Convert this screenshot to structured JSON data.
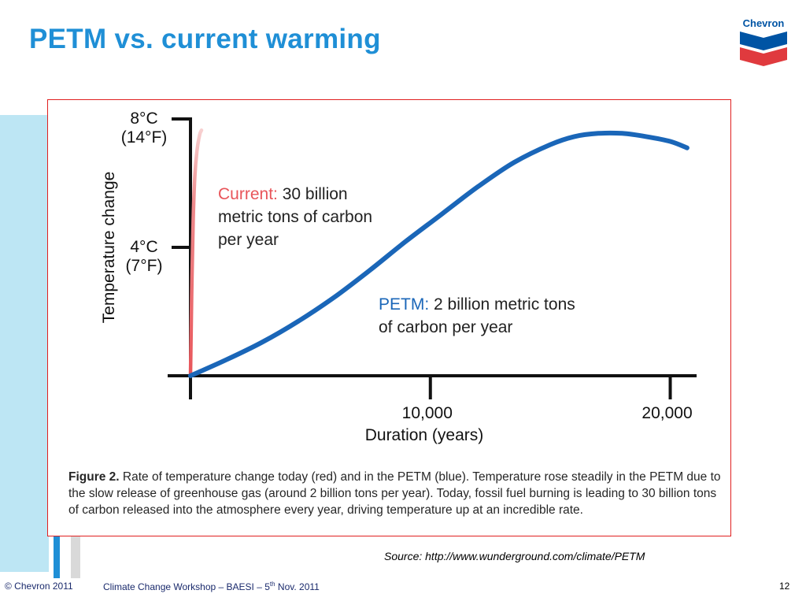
{
  "slide": {
    "title": "PETM vs. current warming",
    "source": "Source: http://www.wunderground.com/climate/PETM"
  },
  "logo": {
    "text": "Chevron",
    "icon": "chevron-logo-icon",
    "colors": {
      "blue": "#0054a4",
      "red": "#e03a3e"
    }
  },
  "footer": {
    "copyright": "© Chevron 2011",
    "event_prefix": "Climate Change Workshop – BAESI – 5",
    "event_sup": "th",
    "event_suffix": " Nov. 2011",
    "page": "12"
  },
  "caption": {
    "label": "Figure 2.",
    "text": " Rate of temperature change today (red) and in the PETM (blue). Temperature rose steadily in the PETM due to the slow release of greenhouse gas (around 2 billion tons per year). Today, fossil fuel burning is leading to 30 billion tons of carbon released into the atmosphere every year, driving temperature up at an incredible rate."
  },
  "chart_data": {
    "type": "line",
    "xlabel": "Duration (years)",
    "ylabel": "Temperature change",
    "xlim": [
      0,
      21000
    ],
    "ylim": [
      0,
      8
    ],
    "x_ticks": [
      {
        "value": 10000,
        "label": "10,000"
      },
      {
        "value": 20000,
        "label": "20,000"
      }
    ],
    "y_ticks": [
      {
        "value": 4,
        "label": [
          "4°C",
          "(7°F)"
        ]
      },
      {
        "value": 8,
        "label": [
          "8°C",
          "(14°F)"
        ]
      }
    ],
    "grid": false,
    "series": [
      {
        "key": "current",
        "color": "#e8555a",
        "annotation_lead": "Current:",
        "annotation_rest": [
          " 30 billion",
          "metric tons of carbon",
          "per year"
        ],
        "points": [
          [
            0,
            0
          ],
          [
            50,
            2.5
          ],
          [
            110,
            4.8
          ],
          [
            180,
            6.2
          ],
          [
            270,
            7.0
          ],
          [
            380,
            7.5
          ],
          [
            460,
            7.65
          ]
        ]
      },
      {
        "key": "petm",
        "color": "#1a66b8",
        "annotation_lead": "PETM:",
        "annotation_rest": [
          " 2 billion metric tons",
          "of carbon per year"
        ],
        "points": [
          [
            0,
            0
          ],
          [
            1500,
            0.5
          ],
          [
            3000,
            1.05
          ],
          [
            4500,
            1.7
          ],
          [
            6000,
            2.45
          ],
          [
            7500,
            3.3
          ],
          [
            9000,
            4.2
          ],
          [
            10500,
            5.05
          ],
          [
            12000,
            5.9
          ],
          [
            13500,
            6.65
          ],
          [
            15000,
            7.2
          ],
          [
            16000,
            7.45
          ],
          [
            17000,
            7.55
          ],
          [
            18000,
            7.55
          ],
          [
            19000,
            7.45
          ],
          [
            20000,
            7.3
          ],
          [
            20700,
            7.1
          ]
        ]
      }
    ]
  }
}
